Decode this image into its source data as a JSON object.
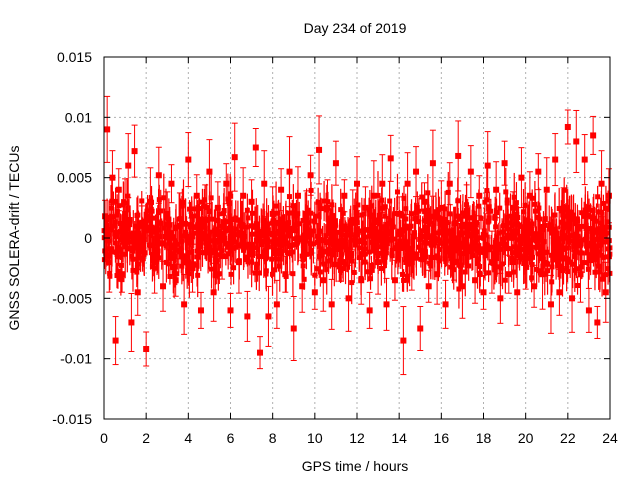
{
  "chart_data": {
    "type": "scatter",
    "title": "Day 234 of 2019",
    "xlabel": "GPS time / hours",
    "ylabel": "GNSS SOLERA-drift / TECUs",
    "xlim": [
      0,
      24
    ],
    "ylim": [
      -0.015,
      0.015
    ],
    "xticks": [
      "0",
      "2",
      "4",
      "6",
      "8",
      "10",
      "12",
      "14",
      "16",
      "18",
      "20",
      "22",
      "24"
    ],
    "yticks": [
      "-0.015",
      "-0.01",
      "-0.005",
      "0",
      "0.005",
      "0.01",
      "0.015"
    ],
    "grid": true,
    "error_bars": true,
    "marker_color": "#ff0000",
    "series": [
      {
        "x": [
          0.05,
          0.15,
          0.25,
          0.4,
          0.55,
          0.7,
          0.85,
          1.0,
          1.15,
          1.3,
          1.45,
          1.6,
          1.8,
          2.0,
          2.2,
          2.4,
          2.6,
          2.8,
          3.0,
          3.2,
          3.4,
          3.6,
          3.8,
          4.0,
          4.2,
          4.4,
          4.6,
          4.8,
          5.0,
          5.2,
          5.4,
          5.6,
          5.8,
          6.0,
          6.2,
          6.4,
          6.6,
          6.8,
          7.0,
          7.2,
          7.4,
          7.6,
          7.8,
          8.0,
          8.2,
          8.4,
          8.6,
          8.8,
          9.0,
          9.2,
          9.4,
          9.6,
          9.8,
          10.0,
          10.2,
          10.4,
          10.6,
          10.8,
          11.0,
          11.2,
          11.4,
          11.6,
          11.8,
          12.0,
          12.2,
          12.4,
          12.6,
          12.8,
          13.0,
          13.2,
          13.4,
          13.6,
          13.8,
          14.0,
          14.2,
          14.4,
          14.6,
          14.8,
          15.0,
          15.2,
          15.4,
          15.6,
          15.8,
          16.0,
          16.2,
          16.4,
          16.6,
          16.8,
          17.0,
          17.2,
          17.4,
          17.6,
          17.8,
          18.0,
          18.2,
          18.4,
          18.6,
          18.8,
          19.0,
          19.2,
          19.4,
          19.6,
          19.8,
          20.0,
          20.2,
          20.4,
          20.6,
          20.8,
          21.0,
          21.2,
          21.4,
          21.6,
          21.8,
          22.0,
          22.2,
          22.4,
          22.6,
          22.8,
          23.0,
          23.2,
          23.4,
          23.6,
          23.8,
          23.95
        ],
        "y": [
          0.0018,
          0.009,
          -0.002,
          0.005,
          -0.0085,
          0.004,
          -0.003,
          0.002,
          0.006,
          -0.007,
          0.0072,
          -0.0045,
          0.001,
          -0.0092,
          0.003,
          -0.002,
          0.0052,
          -0.004,
          0.002,
          0.0045,
          -0.0035,
          0.001,
          -0.0055,
          0.0065,
          -0.0025,
          0.0035,
          -0.006,
          0.0015,
          0.0055,
          -0.0045,
          0.0025,
          -0.0015,
          0.0045,
          -0.006,
          0.0067,
          -0.002,
          0.0035,
          -0.0065,
          0.003,
          0.0075,
          -0.0095,
          0.0045,
          -0.0065,
          0.002,
          -0.0055,
          0.004,
          -0.003,
          0.0055,
          -0.0075,
          0.0035,
          -0.004,
          0.002,
          0.0052,
          -0.0045,
          0.0073,
          -0.0035,
          0.0025,
          -0.0055,
          0.0062,
          -0.002,
          0.0035,
          -0.005,
          0.0015,
          0.0045,
          -0.0035,
          0.0025,
          -0.006,
          0.0035,
          -0.002,
          0.0045,
          -0.0055,
          0.0066,
          -0.0035,
          0.002,
          -0.0085,
          0.0045,
          -0.002,
          0.0055,
          -0.0075,
          0.003,
          -0.004,
          0.0062,
          -0.003,
          0.0025,
          -0.0055,
          0.0045,
          -0.002,
          0.0068,
          -0.004,
          0.002,
          0.0055,
          -0.0035,
          0.0035,
          -0.0045,
          0.006,
          -0.002,
          0.004,
          -0.005,
          0.0062,
          -0.003,
          0.0025,
          -0.0045,
          0.005,
          -0.002,
          0.0035,
          -0.004,
          0.0055,
          -0.003,
          0.004,
          -0.0055,
          0.0065,
          -0.0045,
          0.0025,
          0.0092,
          -0.005,
          0.008,
          -0.003,
          0.0065,
          -0.006,
          0.0085,
          -0.007,
          0.0045,
          -0.0045,
          0.0035
        ]
      }
    ]
  }
}
